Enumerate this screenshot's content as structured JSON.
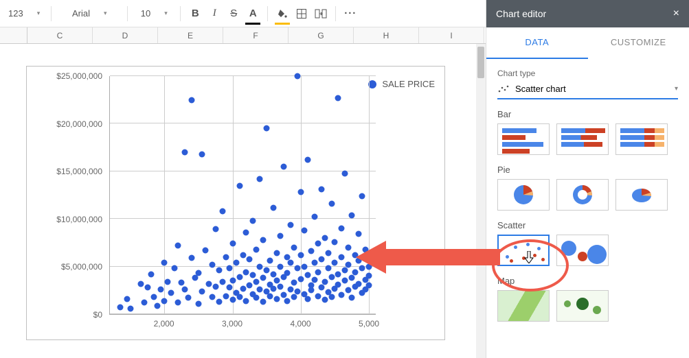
{
  "toolbar": {
    "format_123": "123",
    "font_family": "Arial",
    "font_size": "10",
    "bold": "B",
    "italic": "I",
    "strike": "S",
    "text_color": "A",
    "more": "···"
  },
  "columns": [
    "C",
    "D",
    "E",
    "F",
    "G",
    "H",
    "I"
  ],
  "chart": {
    "legend_label": "SALE PRICE",
    "point_color": "#2c5cd6",
    "grid_color": "#cccccc",
    "axis_color": "#aaaaaa",
    "y_ticks": [
      {
        "v": 0,
        "label": "$0"
      },
      {
        "v": 5000000,
        "label": "$5,000,000"
      },
      {
        "v": 10000000,
        "label": "$10,000,000"
      },
      {
        "v": 15000000,
        "label": "$15,000,000"
      },
      {
        "v": 20000000,
        "label": "$20,000,000"
      },
      {
        "v": 25000000,
        "label": "$25,000,000"
      }
    ],
    "x_ticks": [
      {
        "v": 2000,
        "label": "2,000"
      },
      {
        "v": 3000,
        "label": "3,000"
      },
      {
        "v": 4000,
        "label": "4,000"
      },
      {
        "v": 5000,
        "label": "5,000"
      }
    ],
    "x_range": [
      1200,
      5100
    ],
    "y_range": [
      0,
      25000000
    ],
    "points": [
      [
        1350,
        700000
      ],
      [
        1450,
        1600000
      ],
      [
        1500,
        600000
      ],
      [
        1650,
        3200000
      ],
      [
        1700,
        1200000
      ],
      [
        1750,
        2800000
      ],
      [
        1800,
        4200000
      ],
      [
        1850,
        1800000
      ],
      [
        1900,
        900000
      ],
      [
        1950,
        2600000
      ],
      [
        2000,
        1400000
      ],
      [
        2000,
        5400000
      ],
      [
        2050,
        3400000
      ],
      [
        2100,
        2200000
      ],
      [
        2150,
        4800000
      ],
      [
        2200,
        1200000
      ],
      [
        2200,
        7200000
      ],
      [
        2250,
        3300000
      ],
      [
        2300,
        17000000
      ],
      [
        2300,
        2600000
      ],
      [
        2350,
        1700000
      ],
      [
        2400,
        22500000
      ],
      [
        2400,
        5900000
      ],
      [
        2450,
        3800000
      ],
      [
        2500,
        1100000
      ],
      [
        2500,
        4300000
      ],
      [
        2550,
        2400000
      ],
      [
        2550,
        16800000
      ],
      [
        2600,
        6700000
      ],
      [
        2650,
        3200000
      ],
      [
        2700,
        1800000
      ],
      [
        2700,
        5200000
      ],
      [
        2750,
        2900000
      ],
      [
        2750,
        8900000
      ],
      [
        2800,
        4600000
      ],
      [
        2800,
        1300000
      ],
      [
        2850,
        10800000
      ],
      [
        2850,
        3400000
      ],
      [
        2900,
        1900000
      ],
      [
        2900,
        6000000
      ],
      [
        2950,
        2800000
      ],
      [
        2950,
        4800000
      ],
      [
        3000,
        3500000
      ],
      [
        3000,
        1500000
      ],
      [
        3000,
        7400000
      ],
      [
        3050,
        2200000
      ],
      [
        3050,
        5400000
      ],
      [
        3100,
        3900000
      ],
      [
        3100,
        1800000
      ],
      [
        3100,
        13500000
      ],
      [
        3150,
        2700000
      ],
      [
        3150,
        6200000
      ],
      [
        3200,
        4400000
      ],
      [
        3200,
        1400000
      ],
      [
        3200,
        8600000
      ],
      [
        3250,
        3000000
      ],
      [
        3250,
        5800000
      ],
      [
        3300,
        2100000
      ],
      [
        3300,
        4100000
      ],
      [
        3300,
        9800000
      ],
      [
        3350,
        3400000
      ],
      [
        3350,
        1700000
      ],
      [
        3350,
        6800000
      ],
      [
        3400,
        2600000
      ],
      [
        3400,
        5000000
      ],
      [
        3400,
        14200000
      ],
      [
        3450,
        3800000
      ],
      [
        3450,
        1300000
      ],
      [
        3450,
        7800000
      ],
      [
        3500,
        2400000
      ],
      [
        3500,
        4600000
      ],
      [
        3500,
        19500000
      ],
      [
        3550,
        3100000
      ],
      [
        3550,
        5600000
      ],
      [
        3550,
        1900000
      ],
      [
        3600,
        11200000
      ],
      [
        3600,
        4200000
      ],
      [
        3600,
        2700000
      ],
      [
        3650,
        6400000
      ],
      [
        3650,
        3500000
      ],
      [
        3650,
        1600000
      ],
      [
        3700,
        8200000
      ],
      [
        3700,
        2900000
      ],
      [
        3700,
        5000000
      ],
      [
        3750,
        15500000
      ],
      [
        3750,
        3900000
      ],
      [
        3750,
        2000000
      ],
      [
        3800,
        6000000
      ],
      [
        3800,
        4300000
      ],
      [
        3800,
        1400000
      ],
      [
        3850,
        9400000
      ],
      [
        3850,
        2600000
      ],
      [
        3850,
        5400000
      ],
      [
        3900,
        3300000
      ],
      [
        3900,
        7000000
      ],
      [
        3900,
        1800000
      ],
      [
        3950,
        25000000
      ],
      [
        3950,
        4800000
      ],
      [
        3950,
        2400000
      ],
      [
        4000,
        12800000
      ],
      [
        4000,
        3700000
      ],
      [
        4000,
        6200000
      ],
      [
        4050,
        2100000
      ],
      [
        4050,
        5000000
      ],
      [
        4050,
        8800000
      ],
      [
        4100,
        4100000
      ],
      [
        4100,
        1600000
      ],
      [
        4100,
        16200000
      ],
      [
        4150,
        3000000
      ],
      [
        4150,
        6600000
      ],
      [
        4150,
        2500000
      ],
      [
        4200,
        5400000
      ],
      [
        4200,
        10200000
      ],
      [
        4200,
        3600000
      ],
      [
        4250,
        1900000
      ],
      [
        4250,
        7400000
      ],
      [
        4250,
        4400000
      ],
      [
        4300,
        2800000
      ],
      [
        4300,
        13100000
      ],
      [
        4300,
        5800000
      ],
      [
        4350,
        3400000
      ],
      [
        4350,
        1500000
      ],
      [
        4350,
        8000000
      ],
      [
        4400,
        4800000
      ],
      [
        4400,
        2300000
      ],
      [
        4400,
        6400000
      ],
      [
        4450,
        11600000
      ],
      [
        4450,
        3900000
      ],
      [
        4450,
        1800000
      ],
      [
        4500,
        5400000
      ],
      [
        4500,
        2700000
      ],
      [
        4500,
        7600000
      ],
      [
        4550,
        4200000
      ],
      [
        4550,
        22700000
      ],
      [
        4550,
        3100000
      ],
      [
        4600,
        6000000
      ],
      [
        4600,
        2000000
      ],
      [
        4600,
        9000000
      ],
      [
        4650,
        4600000
      ],
      [
        4650,
        3500000
      ],
      [
        4650,
        14800000
      ],
      [
        4700,
        2500000
      ],
      [
        4700,
        7000000
      ],
      [
        4700,
        5200000
      ],
      [
        4750,
        3800000
      ],
      [
        4750,
        1700000
      ],
      [
        4750,
        10400000
      ],
      [
        4800,
        2900000
      ],
      [
        4800,
        6200000
      ],
      [
        4800,
        4400000
      ],
      [
        4850,
        8400000
      ],
      [
        4850,
        3200000
      ],
      [
        4850,
        5600000
      ],
      [
        4900,
        2200000
      ],
      [
        4900,
        12400000
      ],
      [
        4900,
        4800000
      ],
      [
        4950,
        3600000
      ],
      [
        4950,
        6800000
      ],
      [
        4950,
        2600000
      ],
      [
        5000,
        5000000
      ],
      [
        5000,
        4000000
      ],
      [
        5000,
        3000000
      ]
    ]
  },
  "panel": {
    "title": "Chart editor",
    "tabs": {
      "data": "DATA",
      "customize": "CUSTOMIZE"
    },
    "chart_type_label": "Chart type",
    "chart_type_value": "Scatter chart",
    "groups": [
      "Bar",
      "Pie",
      "Scatter",
      "Map"
    ]
  },
  "colors": {
    "blue": "#4a86e8",
    "red": "#cc4125",
    "orange": "#f6b26b",
    "green": "#6aa84f",
    "annotate": "#ee5a4a"
  }
}
